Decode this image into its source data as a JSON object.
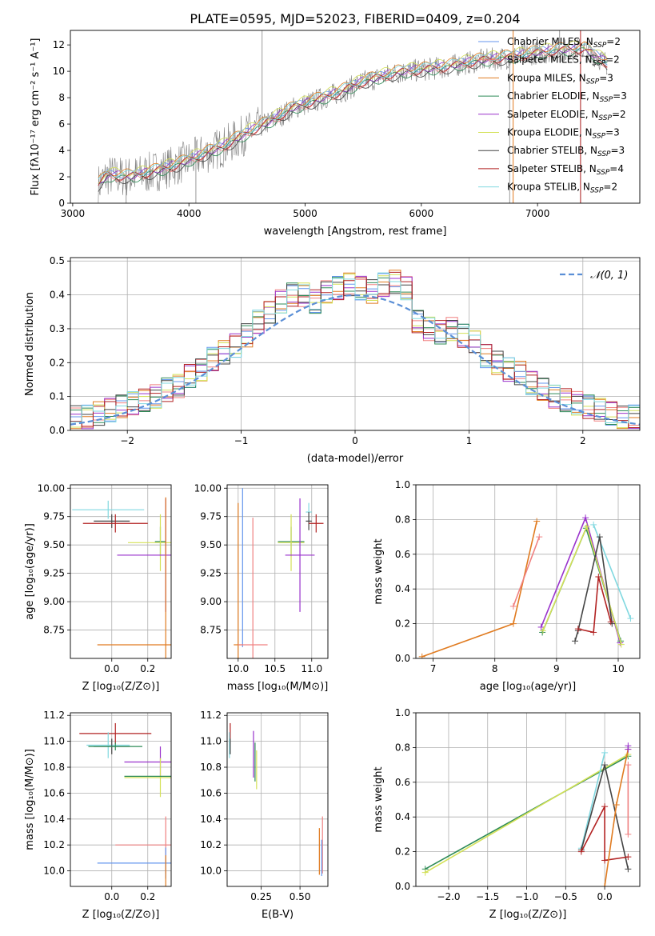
{
  "title": "PLATE=0595, MJD=52023, FIBERID=0409, z=0.204",
  "colors": {
    "Chabrier MILES": "#6495ed",
    "Salpeter MILES": "#f08080",
    "Kroupa MILES": "#e07b20",
    "Chabrier ELODIE": "#2e8b57",
    "Salpeter ELODIE": "#9932cc",
    "Kroupa ELODIE": "#d4e157",
    "Chabrier STELIB": "#444444",
    "Salpeter STELIB": "#b22222",
    "Kroupa STELIB": "#80d8e0",
    "data": "#808080",
    "normal": "#5b8fd6",
    "grid": "#b0b0b0"
  },
  "legend": [
    {
      "model": "Chabrier MILES",
      "prefix": "Chabrier MILES, N",
      "sub": "SSP",
      "suffix": "=2"
    },
    {
      "model": "Salpeter MILES",
      "prefix": "Salpeter MILES, N",
      "sub": "SSP",
      "suffix": "=2"
    },
    {
      "model": "Kroupa MILES",
      "prefix": "Kroupa MILES, N",
      "sub": "SSP",
      "suffix": "=3"
    },
    {
      "model": "Chabrier ELODIE",
      "prefix": "Chabrier ELODIE, N",
      "sub": "SSP",
      "suffix": "=3"
    },
    {
      "model": "Salpeter ELODIE",
      "prefix": "Salpeter ELODIE, N",
      "sub": "SSP",
      "suffix": "=2"
    },
    {
      "model": "Kroupa ELODIE",
      "prefix": "Kroupa ELODIE, N",
      "sub": "SSP",
      "suffix": "=3"
    },
    {
      "model": "Chabrier STELIB",
      "prefix": "Chabrier STELIB, N",
      "sub": "SSP",
      "suffix": "=3"
    },
    {
      "model": "Salpeter STELIB",
      "prefix": "Salpeter STELIB, N",
      "sub": "SSP",
      "suffix": "=4"
    },
    {
      "model": "Kroupa STELIB",
      "prefix": "Kroupa STELIB, N",
      "sub": "SSP",
      "suffix": "=2"
    }
  ],
  "chart_data": [
    {
      "id": "spectrum",
      "type": "line",
      "xlabel": "wavelength [Angstrom, rest frame]",
      "ylabel": "Flux [fλ10⁻¹⁷ erg cm⁻² s⁻¹ A⁻¹]",
      "xlim": [
        2980,
        7880
      ],
      "ylim": [
        0,
        13.1
      ],
      "xticks": [
        3000,
        4000,
        5000,
        6000,
        7000
      ],
      "yticks": [
        0,
        2,
        4,
        6,
        8,
        10,
        12
      ],
      "grid": false,
      "legend_position": "top-right",
      "continuum": [
        [
          3220,
          1.4
        ],
        [
          3300,
          2.1
        ],
        [
          3500,
          2.0
        ],
        [
          3700,
          2.4
        ],
        [
          3900,
          2.9
        ],
        [
          4100,
          3.6
        ],
        [
          4300,
          4.3
        ],
        [
          4500,
          5.3
        ],
        [
          4700,
          6.2
        ],
        [
          4900,
          7.2
        ],
        [
          5100,
          7.8
        ],
        [
          5300,
          8.4
        ],
        [
          5500,
          9.2
        ],
        [
          5800,
          9.9
        ],
        [
          6000,
          10.1
        ],
        [
          6200,
          10.3
        ],
        [
          6500,
          10.8
        ],
        [
          6800,
          11.1
        ],
        [
          7000,
          11.4
        ],
        [
          7200,
          11.6
        ],
        [
          7400,
          11.7
        ],
        [
          7600,
          10.6
        ]
      ],
      "model_offsets": [
        0.15,
        -0.1,
        0.3,
        -0.2,
        0.1,
        0.35,
        -0.25,
        0.0,
        0.2
      ],
      "spikes": [
        [
          4630,
          13.1
        ],
        [
          6760,
          0
        ],
        [
          7190,
          13.1
        ],
        [
          7370,
          0
        ],
        [
          3460,
          0
        ],
        [
          4060,
          0
        ]
      ]
    },
    {
      "id": "residuals",
      "type": "histogram",
      "xlabel": "(data-model)/error",
      "ylabel": "Normed distribution",
      "xlim": [
        -2.5,
        2.5
      ],
      "ylim": [
        0,
        0.51
      ],
      "xticks": [
        -2,
        -1,
        0,
        1,
        2
      ],
      "yticks": [
        0.0,
        0.1,
        0.2,
        0.3,
        0.4,
        0.5
      ],
      "grid": true,
      "legend_position": "top-right",
      "legend_label": "𝒩(0, 1)",
      "bin_width": 0.1,
      "envelope": [
        0.04,
        0.04,
        0.05,
        0.06,
        0.07,
        0.08,
        0.09,
        0.1,
        0.12,
        0.13,
        0.16,
        0.18,
        0.21,
        0.23,
        0.25,
        0.28,
        0.32,
        0.35,
        0.38,
        0.4,
        0.4,
        0.38,
        0.41,
        0.42,
        0.43,
        0.42,
        0.41,
        0.43,
        0.44,
        0.42,
        0.32,
        0.3,
        0.29,
        0.3,
        0.28,
        0.26,
        0.22,
        0.2,
        0.18,
        0.17,
        0.14,
        0.12,
        0.1,
        0.09,
        0.08,
        0.07,
        0.06,
        0.05,
        0.04,
        0.04
      ]
    },
    {
      "id": "age-vs-z",
      "type": "errorbar",
      "xlabel": "Z [log₁₀(Z/Z⊙)]",
      "ylabel": "age  [log₁₀(age/yr)]",
      "xlim": [
        -0.23,
        0.33
      ],
      "ylim": [
        8.5,
        10.03
      ],
      "xticks": [
        0.0,
        0.2
      ],
      "yticks": [
        8.75,
        9.0,
        9.25,
        9.5,
        9.75,
        10.0
      ],
      "points": [
        {
          "model": "Kroupa STELIB",
          "x": -0.02,
          "xerr": 0.2,
          "y": 9.81,
          "yerr": 0.08
        },
        {
          "model": "Chabrier STELIB",
          "x": 0.0,
          "xerr": 0.1,
          "y": 9.71,
          "yerr": 0.06
        },
        {
          "model": "Salpeter STELIB",
          "x": 0.02,
          "xerr": 0.18,
          "y": 9.69,
          "yerr": 0.08
        },
        {
          "model": "Chabrier ELODIE",
          "x": 0.27,
          "xerr": 0.03,
          "y": 9.53,
          "yerr": 0.13
        },
        {
          "model": "Kroupa ELODIE",
          "x": 0.27,
          "xerr": 0.18,
          "y": 9.52,
          "yerr": 0.25
        },
        {
          "model": "Salpeter ELODIE",
          "x": 0.3,
          "xerr": 0.27,
          "y": 9.41,
          "yerr": 0.5
        },
        {
          "model": "Kroupa MILES",
          "x": 0.3,
          "xerr": 0.38,
          "y": 8.62,
          "yerr": 1.3
        }
      ]
    },
    {
      "id": "age-vs-mass",
      "type": "errorbar",
      "xlabel": "mass [log₁₀(M/M⊙)]",
      "ylabel": "",
      "xlim": [
        9.85,
        11.22
      ],
      "ylim": [
        8.5,
        10.03
      ],
      "xticks": [
        10.0,
        10.5,
        11.0
      ],
      "yticks": [
        8.75,
        9.0,
        9.25,
        9.5,
        9.75,
        10.0
      ],
      "points": [
        {
          "model": "Kroupa MILES",
          "x": 10.0,
          "xerr": 0.06,
          "y": 8.62,
          "yerr": 1.25
        },
        {
          "model": "Chabrier MILES",
          "x": 10.06,
          "xerr": 0.0,
          "y": 9.3,
          "yerr": 0.7
        },
        {
          "model": "Salpeter MILES",
          "x": 10.2,
          "xerr": 0.2,
          "y": 8.62,
          "yerr": 1.12
        },
        {
          "model": "Kroupa STELIB",
          "x": 10.96,
          "xerr": 0.04,
          "y": 9.79,
          "yerr": 0.08
        },
        {
          "model": "Chabrier STELIB",
          "x": 10.96,
          "xerr": 0.04,
          "y": 9.71,
          "yerr": 0.08
        },
        {
          "model": "Salpeter STELIB",
          "x": 11.06,
          "xerr": 0.1,
          "y": 9.69,
          "yerr": 0.08
        },
        {
          "model": "Chabrier ELODIE",
          "x": 10.72,
          "xerr": 0.18,
          "y": 9.53,
          "yerr": 0.13
        },
        {
          "model": "Kroupa ELODIE",
          "x": 10.72,
          "xerr": 0.18,
          "y": 9.52,
          "yerr": 0.25
        },
        {
          "model": "Salpeter ELODIE",
          "x": 10.84,
          "xerr": 0.2,
          "y": 9.41,
          "yerr": 0.5
        }
      ]
    },
    {
      "id": "weight-vs-age",
      "type": "line",
      "xlabel": "age  [log₁₀(age/yr)]",
      "ylabel": "mass weight",
      "xlim": [
        6.72,
        10.35
      ],
      "ylim": [
        0,
        1.0
      ],
      "xticks": [
        7,
        8,
        9,
        10
      ],
      "yticks": [
        0.0,
        0.2,
        0.4,
        0.6,
        0.8,
        1.0
      ],
      "grid": true,
      "series": [
        {
          "model": "Kroupa MILES",
          "points": [
            [
              6.82,
              0.01
            ],
            [
              8.3,
              0.2
            ],
            [
              8.68,
              0.79
            ]
          ]
        },
        {
          "model": "Salpeter MILES",
          "points": [
            [
              8.3,
              0.3
            ],
            [
              8.72,
              0.7
            ]
          ]
        },
        {
          "model": "Salpeter ELODIE",
          "points": [
            [
              8.75,
              0.18
            ],
            [
              9.47,
              0.81
            ],
            [
              10.03,
              0.09
            ]
          ]
        },
        {
          "model": "Chabrier ELODIE",
          "points": [
            [
              8.77,
              0.15
            ],
            [
              9.48,
              0.75
            ],
            [
              10.04,
              0.1
            ]
          ]
        },
        {
          "model": "Kroupa ELODIE",
          "points": [
            [
              8.78,
              0.16
            ],
            [
              9.49,
              0.76
            ],
            [
              10.05,
              0.08
            ]
          ]
        },
        {
          "model": "Kroupa STELIB",
          "points": [
            [
              9.6,
              0.77
            ],
            [
              10.2,
              0.23
            ]
          ]
        },
        {
          "model": "Chabrier STELIB",
          "points": [
            [
              9.3,
              0.1
            ],
            [
              9.35,
              0.16
            ],
            [
              9.7,
              0.7
            ],
            [
              9.9,
              0.2
            ]
          ]
        },
        {
          "model": "Salpeter STELIB",
          "points": [
            [
              9.35,
              0.17
            ],
            [
              9.6,
              0.15
            ],
            [
              9.68,
              0.47
            ],
            [
              9.88,
              0.21
            ]
          ]
        }
      ]
    },
    {
      "id": "mass-vs-z",
      "type": "errorbar",
      "xlabel": "Z [log₁₀(Z/Z⊙)]",
      "ylabel": "mass [log₁₀(M/M⊙)]",
      "xlim": [
        -0.23,
        0.33
      ],
      "ylim": [
        9.88,
        11.22
      ],
      "xticks": [
        0.0,
        0.2
      ],
      "yticks": [
        10.0,
        10.2,
        10.4,
        10.6,
        10.8,
        11.0,
        11.2
      ],
      "points": [
        {
          "model": "Salpeter STELIB",
          "x": 0.02,
          "xerr": 0.2,
          "y": 11.06,
          "yerr": 0.08
        },
        {
          "model": "Kroupa STELIB",
          "x": -0.02,
          "xerr": 0.12,
          "y": 10.97,
          "yerr": 0.1
        },
        {
          "model": "Chabrier STELIB",
          "x": 0.0,
          "xerr": 0.1,
          "y": 10.96,
          "yerr": 0.06
        },
        {
          "model": "Chabrier ELODIE",
          "x": 0.02,
          "xerr": 0.15,
          "y": 10.96,
          "yerr": 0.03
        },
        {
          "model": "Salpeter ELODIE",
          "x": 0.27,
          "xerr": 0.2,
          "y": 10.84,
          "yerr": 0.12
        },
        {
          "model": "Kroupa ELODIE",
          "x": 0.27,
          "xerr": 0.2,
          "y": 10.72,
          "yerr": 0.15
        },
        {
          "model": "Chabrier ELODIE",
          "x": 0.27,
          "xerr": 0.2,
          "y": 10.73,
          "yerr": 0.0
        },
        {
          "model": "Salpeter MILES",
          "x": 0.3,
          "xerr": 0.28,
          "y": 10.2,
          "yerr": 0.22
        },
        {
          "model": "Chabrier MILES",
          "x": 0.3,
          "xerr": 0.38,
          "y": 10.06,
          "yerr": 0.12
        },
        {
          "model": "Kroupa MILES",
          "x": 0.3,
          "xerr": 0.0,
          "y": 10.0,
          "yerr": 0.12
        }
      ]
    },
    {
      "id": "mass-vs-ebv",
      "type": "errorbar",
      "xlabel": "E(B-V)",
      "ylabel": "",
      "xlim": [
        0.03,
        0.68
      ],
      "ylim": [
        9.88,
        11.22
      ],
      "xticks": [
        0.25,
        0.5
      ],
      "yticks": [
        10.0,
        10.2,
        10.4,
        10.6,
        10.8,
        11.0,
        11.2
      ],
      "points": [
        {
          "model": "Salpeter STELIB",
          "x": 0.05,
          "xerr": 0.0,
          "y": 11.06,
          "yerr": 0.08
        },
        {
          "model": "Kroupa STELIB",
          "x": 0.045,
          "xerr": 0.0,
          "y": 10.97,
          "yerr": 0.1
        },
        {
          "model": "Chabrier STELIB",
          "x": 0.05,
          "xerr": 0.0,
          "y": 10.96,
          "yerr": 0.06
        },
        {
          "model": "Salpeter ELODIE",
          "x": 0.2,
          "xerr": 0.0,
          "y": 10.9,
          "yerr": 0.18
        },
        {
          "model": "Chabrier ELODIE",
          "x": 0.21,
          "xerr": 0.0,
          "y": 10.84,
          "yerr": 0.15
        },
        {
          "model": "Kroupa ELODIE",
          "x": 0.22,
          "xerr": 0.0,
          "y": 10.78,
          "yerr": 0.15
        },
        {
          "model": "Salpeter MILES",
          "x": 0.645,
          "xerr": 0.0,
          "y": 10.2,
          "yerr": 0.22
        },
        {
          "model": "Kroupa MILES",
          "x": 0.625,
          "xerr": 0.0,
          "y": 10.15,
          "yerr": 0.18
        },
        {
          "model": "Chabrier MILES",
          "x": 0.64,
          "xerr": 0.0,
          "y": 10.1,
          "yerr": 0.14
        }
      ]
    },
    {
      "id": "weight-vs-z",
      "type": "line",
      "xlabel": "Z [log₁₀(Z/Z⊙)]",
      "ylabel": "mass weight",
      "xlim": [
        -2.42,
        0.45
      ],
      "ylim": [
        0,
        1.0
      ],
      "xticks": [
        -2.0,
        -1.5,
        -1.0,
        -0.5,
        0.0
      ],
      "yticks": [
        0.0,
        0.2,
        0.4,
        0.6,
        0.8,
        1.0
      ],
      "grid": true,
      "series": [
        {
          "model": "Chabrier ELODIE",
          "points": [
            [
              -2.3,
              0.1
            ],
            [
              0.3,
              0.75
            ]
          ]
        },
        {
          "model": "Kroupa ELODIE",
          "points": [
            [
              -2.3,
              0.08
            ],
            [
              0.3,
              0.76
            ]
          ]
        },
        {
          "model": "Kroupa STELIB",
          "points": [
            [
              -0.3,
              0.22
            ],
            [
              0.0,
              0.77
            ]
          ]
        },
        {
          "model": "Chabrier STELIB",
          "points": [
            [
              -0.3,
              0.21
            ],
            [
              0.0,
              0.7
            ],
            [
              0.3,
              0.1
            ]
          ]
        },
        {
          "model": "Salpeter STELIB",
          "points": [
            [
              -0.3,
              0.2
            ],
            [
              0.0,
              0.46
            ],
            [
              0.0,
              0.15
            ],
            [
              0.3,
              0.17
            ]
          ]
        },
        {
          "model": "Kroupa MILES",
          "points": [
            [
              0.0,
              0.0
            ],
            [
              0.15,
              0.47
            ],
            [
              0.3,
              0.79
            ]
          ]
        },
        {
          "model": "Salpeter MILES",
          "points": [
            [
              0.3,
              0.7
            ],
            [
              0.3,
              0.3
            ]
          ]
        },
        {
          "model": "Salpeter ELODIE",
          "points": [
            [
              0.3,
              0.81
            ],
            [
              0.3,
              0.79
            ]
          ]
        }
      ]
    }
  ]
}
